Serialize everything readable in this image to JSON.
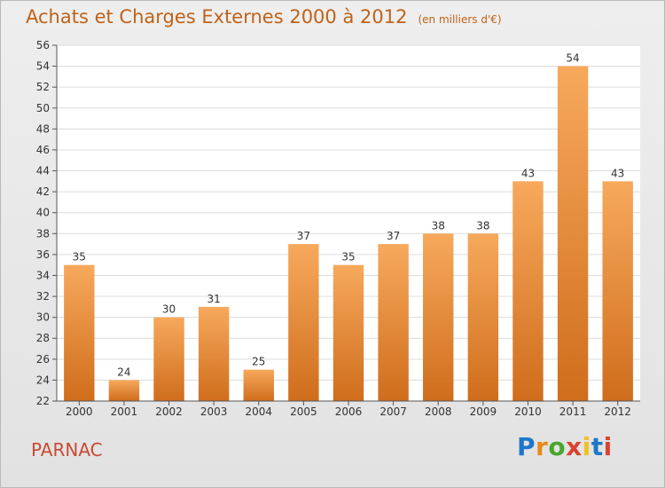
{
  "title": "Achats et Charges Externes 2000 à 2012",
  "unit": "(en milliers d'€)",
  "place": "PARNAC",
  "logo": {
    "text": "Proxiti",
    "colors": [
      "#1f77c9",
      "#e8891a",
      "#4aa52e",
      "#d94330",
      "#f2c01e",
      "#1f77c9",
      "#d94330"
    ]
  },
  "colors": {
    "bar_top": "#f7a95c",
    "bar_bottom": "#cf6d1c",
    "title": "#c06218",
    "place": "#c84a32"
  },
  "chart_data": {
    "type": "bar",
    "title": "Achats et Charges Externes 2000 à 2012",
    "subtitle": "(en milliers d'€)",
    "categories": [
      "2000",
      "2001",
      "2002",
      "2003",
      "2004",
      "2005",
      "2006",
      "2007",
      "2008",
      "2009",
      "2010",
      "2011",
      "2012"
    ],
    "values": [
      35,
      24,
      30,
      31,
      25,
      37,
      35,
      37,
      38,
      38,
      43,
      54,
      43
    ],
    "ylim": [
      22,
      56
    ],
    "yticks": [
      22,
      24,
      26,
      28,
      30,
      32,
      34,
      36,
      38,
      40,
      42,
      44,
      46,
      48,
      50,
      52,
      54,
      56
    ],
    "grid": true,
    "legend": "none"
  }
}
